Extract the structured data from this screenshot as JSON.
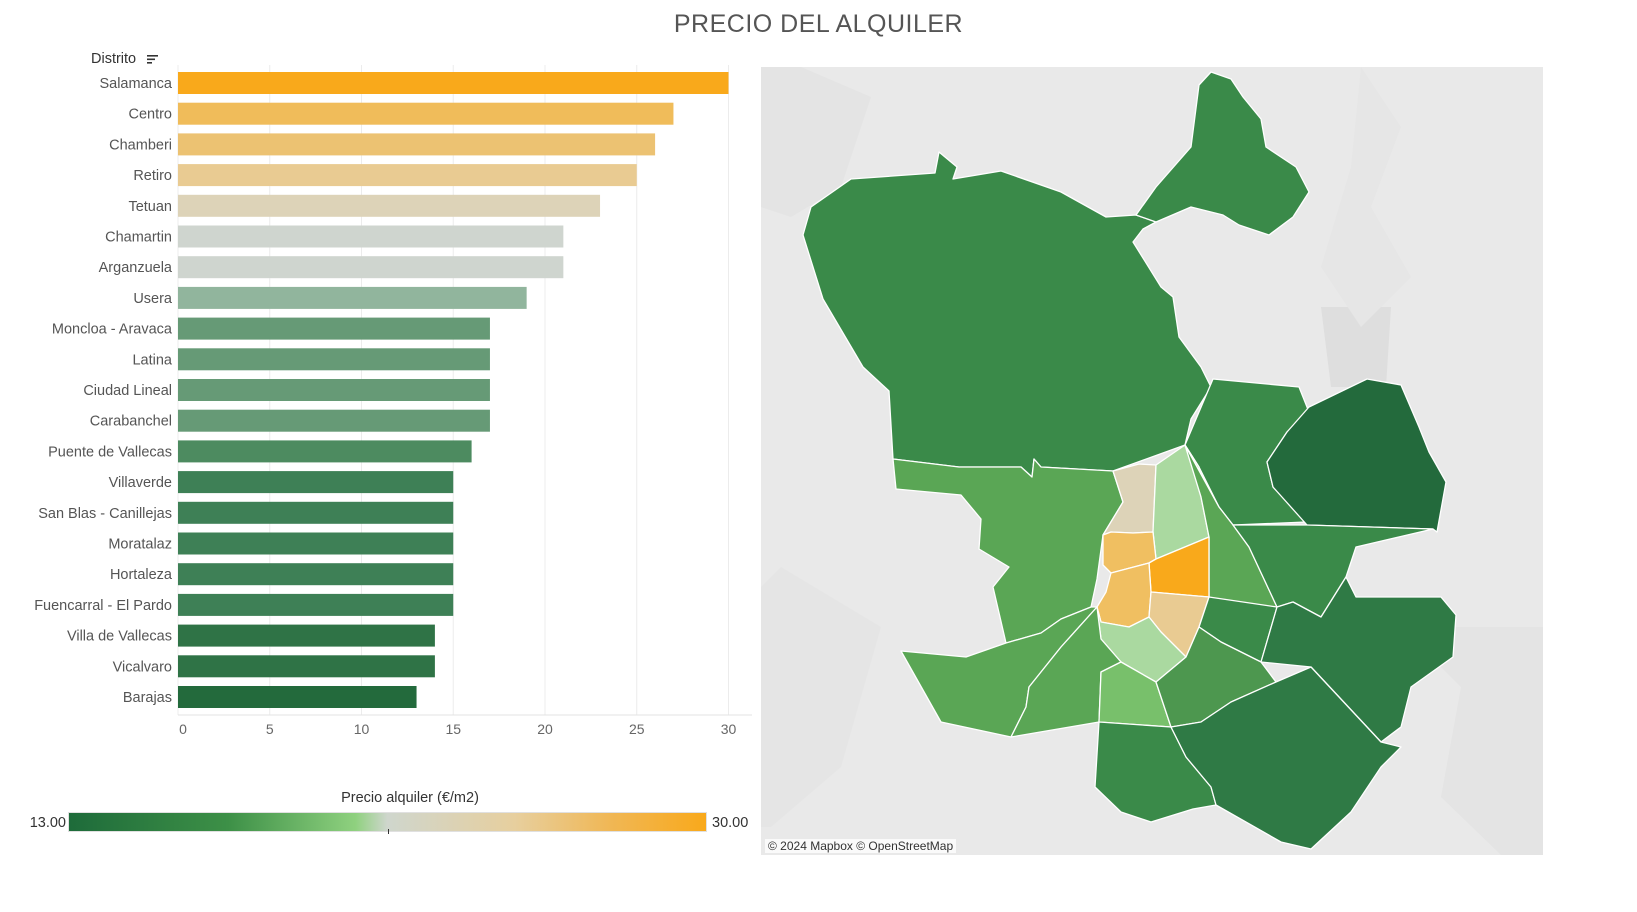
{
  "title": "PRECIO DEL ALQUILER",
  "chart_data": {
    "type": "bar",
    "orientation": "horizontal",
    "category_header": "Distrito",
    "categories": [
      "Salamanca",
      "Centro",
      "Chamberi",
      "Retiro",
      "Tetuan",
      "Chamartin",
      "Arganzuela",
      "Usera",
      "Moncloa - Aravaca",
      "Latina",
      "Ciudad Lineal",
      "Carabanchel",
      "Puente de Vallecas",
      "Villaverde",
      "San Blas - Canillejas",
      "Moratalaz",
      "Hortaleza",
      "Fuencarral - El Pardo",
      "Villa de Vallecas",
      "Vicalvaro",
      "Barajas"
    ],
    "values": [
      30,
      27,
      26,
      25,
      23,
      21,
      21,
      19,
      17,
      17,
      17,
      17,
      16,
      15,
      15,
      15,
      15,
      15,
      14,
      14,
      13
    ],
    "bar_colors": [
      "#f9a91b",
      "#f0bc5a",
      "#ecc272",
      "#e9cb92",
      "#ddd3b8",
      "#cfd5cf",
      "#cfd5cf",
      "#91b59d",
      "#669a76",
      "#669a76",
      "#669a76",
      "#669a76",
      "#4d8b60",
      "#3e8056",
      "#3e8056",
      "#3e8056",
      "#3e8056",
      "#3e8056",
      "#2f7346",
      "#2f7346",
      "#236a3c"
    ],
    "xticks": [
      0,
      5,
      10,
      15,
      20,
      25,
      30
    ],
    "xlim": [
      0,
      30.3
    ],
    "grid": true
  },
  "legend": {
    "title": "Precio alquiler (€/m2)",
    "min_label": "13.00",
    "max_label": "30.00"
  },
  "map": {
    "attribution": "© 2024 Mapbox © OpenStreetMap"
  },
  "colors": {
    "low": "#1e6b3a",
    "mid": "#cfd6cd",
    "high": "#f9a91b"
  }
}
